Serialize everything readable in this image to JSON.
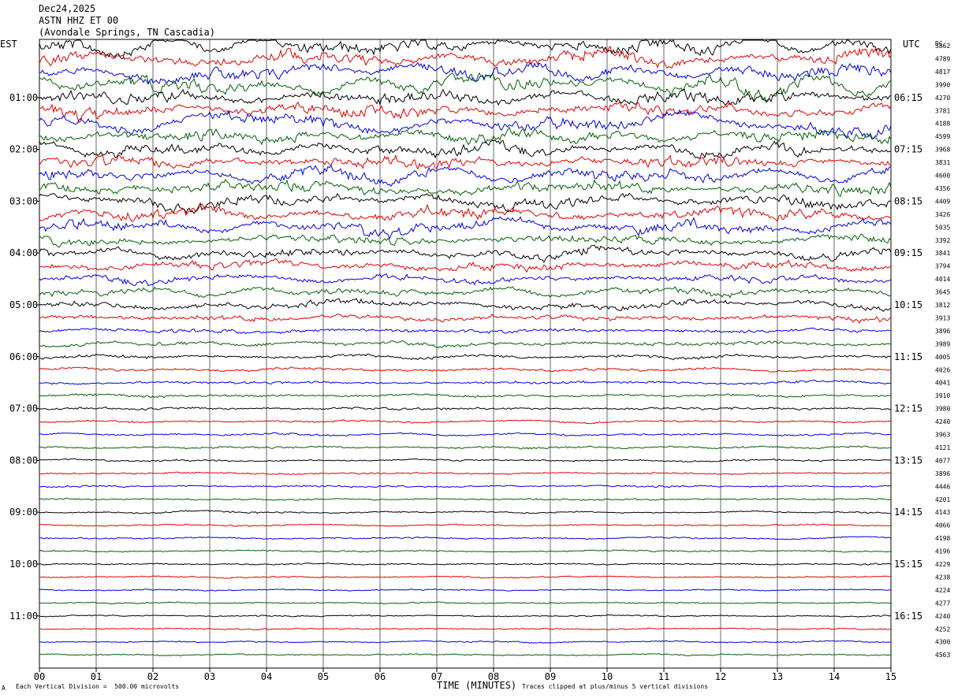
{
  "header": {
    "date": "Dec24,2025",
    "station": "ASTN HHZ ET 00",
    "location": "(Avondale Springs, TN Cascadia)"
  },
  "axis": {
    "left_tz": "EST",
    "right_tz": "UTC",
    "dc_label": "DC",
    "xlabel": "TIME (MINUTES)",
    "scale_note": "Each Vertical Division =  500.00 microvolts",
    "clip_note": "Traces clipped at plus/minus 5 vertical divisions",
    "corner_mark": "A"
  },
  "chart_data": {
    "type": "line",
    "title": "ASTN HHZ ET 00",
    "xlabel": "TIME (MINUTES)",
    "xlim": [
      0,
      15
    ],
    "x_ticks": [
      "00",
      "01",
      "02",
      "03",
      "04",
      "05",
      "06",
      "07",
      "08",
      "09",
      "10",
      "11",
      "12",
      "13",
      "14",
      "15"
    ],
    "left_hour_labels": [
      "01:00",
      "02:00",
      "03:00",
      "04:00",
      "05:00",
      "06:00",
      "07:00",
      "08:00",
      "09:00",
      "10:00",
      "11:00"
    ],
    "right_hour_labels": [
      "06:15",
      "07:15",
      "08:15",
      "09:15",
      "10:15",
      "11:15",
      "12:15",
      "13:15",
      "14:15",
      "15:15",
      "16:15"
    ],
    "dc_offsets": [
      3862,
      4789,
      4817,
      3990,
      4270,
      3781,
      4188,
      4599,
      3968,
      3831,
      4600,
      4356,
      4409,
      3426,
      5035,
      3392,
      3841,
      3794,
      4014,
      3645,
      3812,
      3913,
      3896,
      3989,
      4005,
      4026,
      4041,
      3910,
      3980,
      4240,
      3963,
      4121,
      4077,
      3896,
      4446,
      4201,
      4143,
      4066,
      4198,
      4196,
      4229,
      4238,
      4224,
      4277,
      4240,
      4252,
      4300,
      4563
    ],
    "trace_colors": [
      "#000000",
      "#e00000",
      "#0000e0",
      "#006000"
    ],
    "trace_activity": [
      9,
      9,
      9,
      9,
      9,
      9,
      9,
      8,
      8,
      8,
      8,
      8,
      8,
      8,
      8,
      6,
      6,
      5,
      4,
      4,
      4,
      3,
      2,
      2,
      1.6,
      1.6,
      1.4,
      1.4,
      1.4,
      1.1,
      1.1,
      1.1,
      1,
      1,
      1,
      1,
      0.9,
      0.9,
      0.9,
      0.9,
      0.8,
      0.8,
      0.8,
      0.8,
      0.8,
      0.8,
      0.8,
      0.8
    ]
  }
}
